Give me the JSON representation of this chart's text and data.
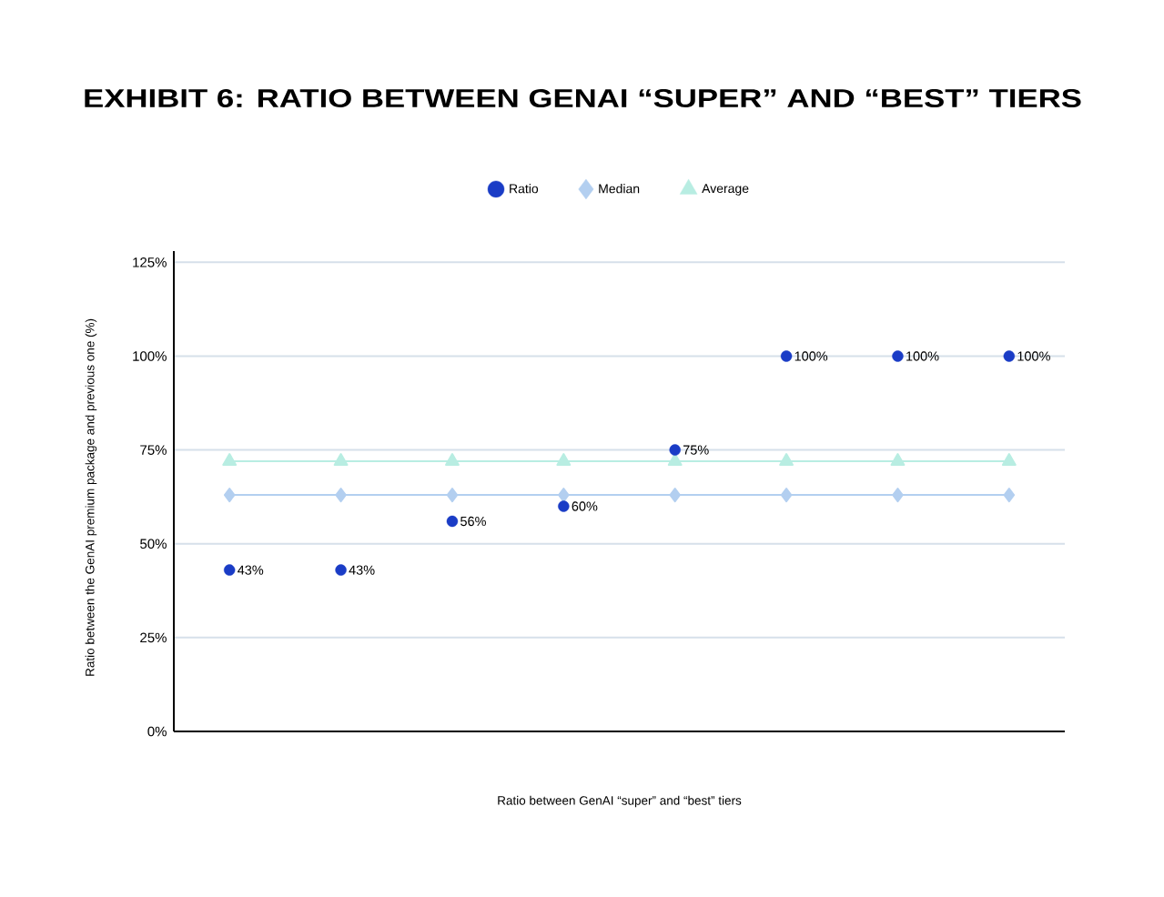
{
  "chart_data": {
    "type": "scatter",
    "title": "EXHIBIT 6: RATIO BETWEEN GENAI “SUPER” AND “BEST” TIERS",
    "xlabel": "Ratio between GenAI “super” and “best” tiers",
    "ylabel": "Ratio between the GenAI premium package and previous one (%)",
    "categories": [
      null,
      null,
      null,
      null,
      null,
      null,
      null,
      null
    ],
    "series": [
      {
        "name": "Ratio",
        "color": "#1a3cc6",
        "marker": "circle",
        "values": [
          43,
          43,
          56,
          60,
          75,
          100,
          100,
          100
        ],
        "value_labels": [
          "43%",
          "43%",
          "56%",
          "60%",
          "75%",
          "100%",
          "100%",
          "100%"
        ]
      },
      {
        "name": "Median",
        "type": "line",
        "color": "#b3cff0",
        "marker": "diamond",
        "values": [
          63,
          63,
          63,
          63,
          63,
          63,
          63,
          63
        ]
      },
      {
        "name": "Average",
        "type": "line",
        "color": "#b8ede2",
        "marker": "triangle",
        "values": [
          72,
          72,
          72,
          72,
          72,
          72,
          72,
          72
        ]
      }
    ],
    "ylim": [
      0,
      128
    ],
    "yticks": [
      {
        "value": 0,
        "label": "0%"
      },
      {
        "value": 25,
        "label": "25%"
      },
      {
        "value": 50,
        "label": "50%"
      },
      {
        "value": 75,
        "label": "75%"
      },
      {
        "value": 100,
        "label": "100%"
      },
      {
        "value": 125,
        "label": "125%"
      }
    ],
    "grid": "y",
    "legend": "top",
    "tick_labels": "y"
  }
}
